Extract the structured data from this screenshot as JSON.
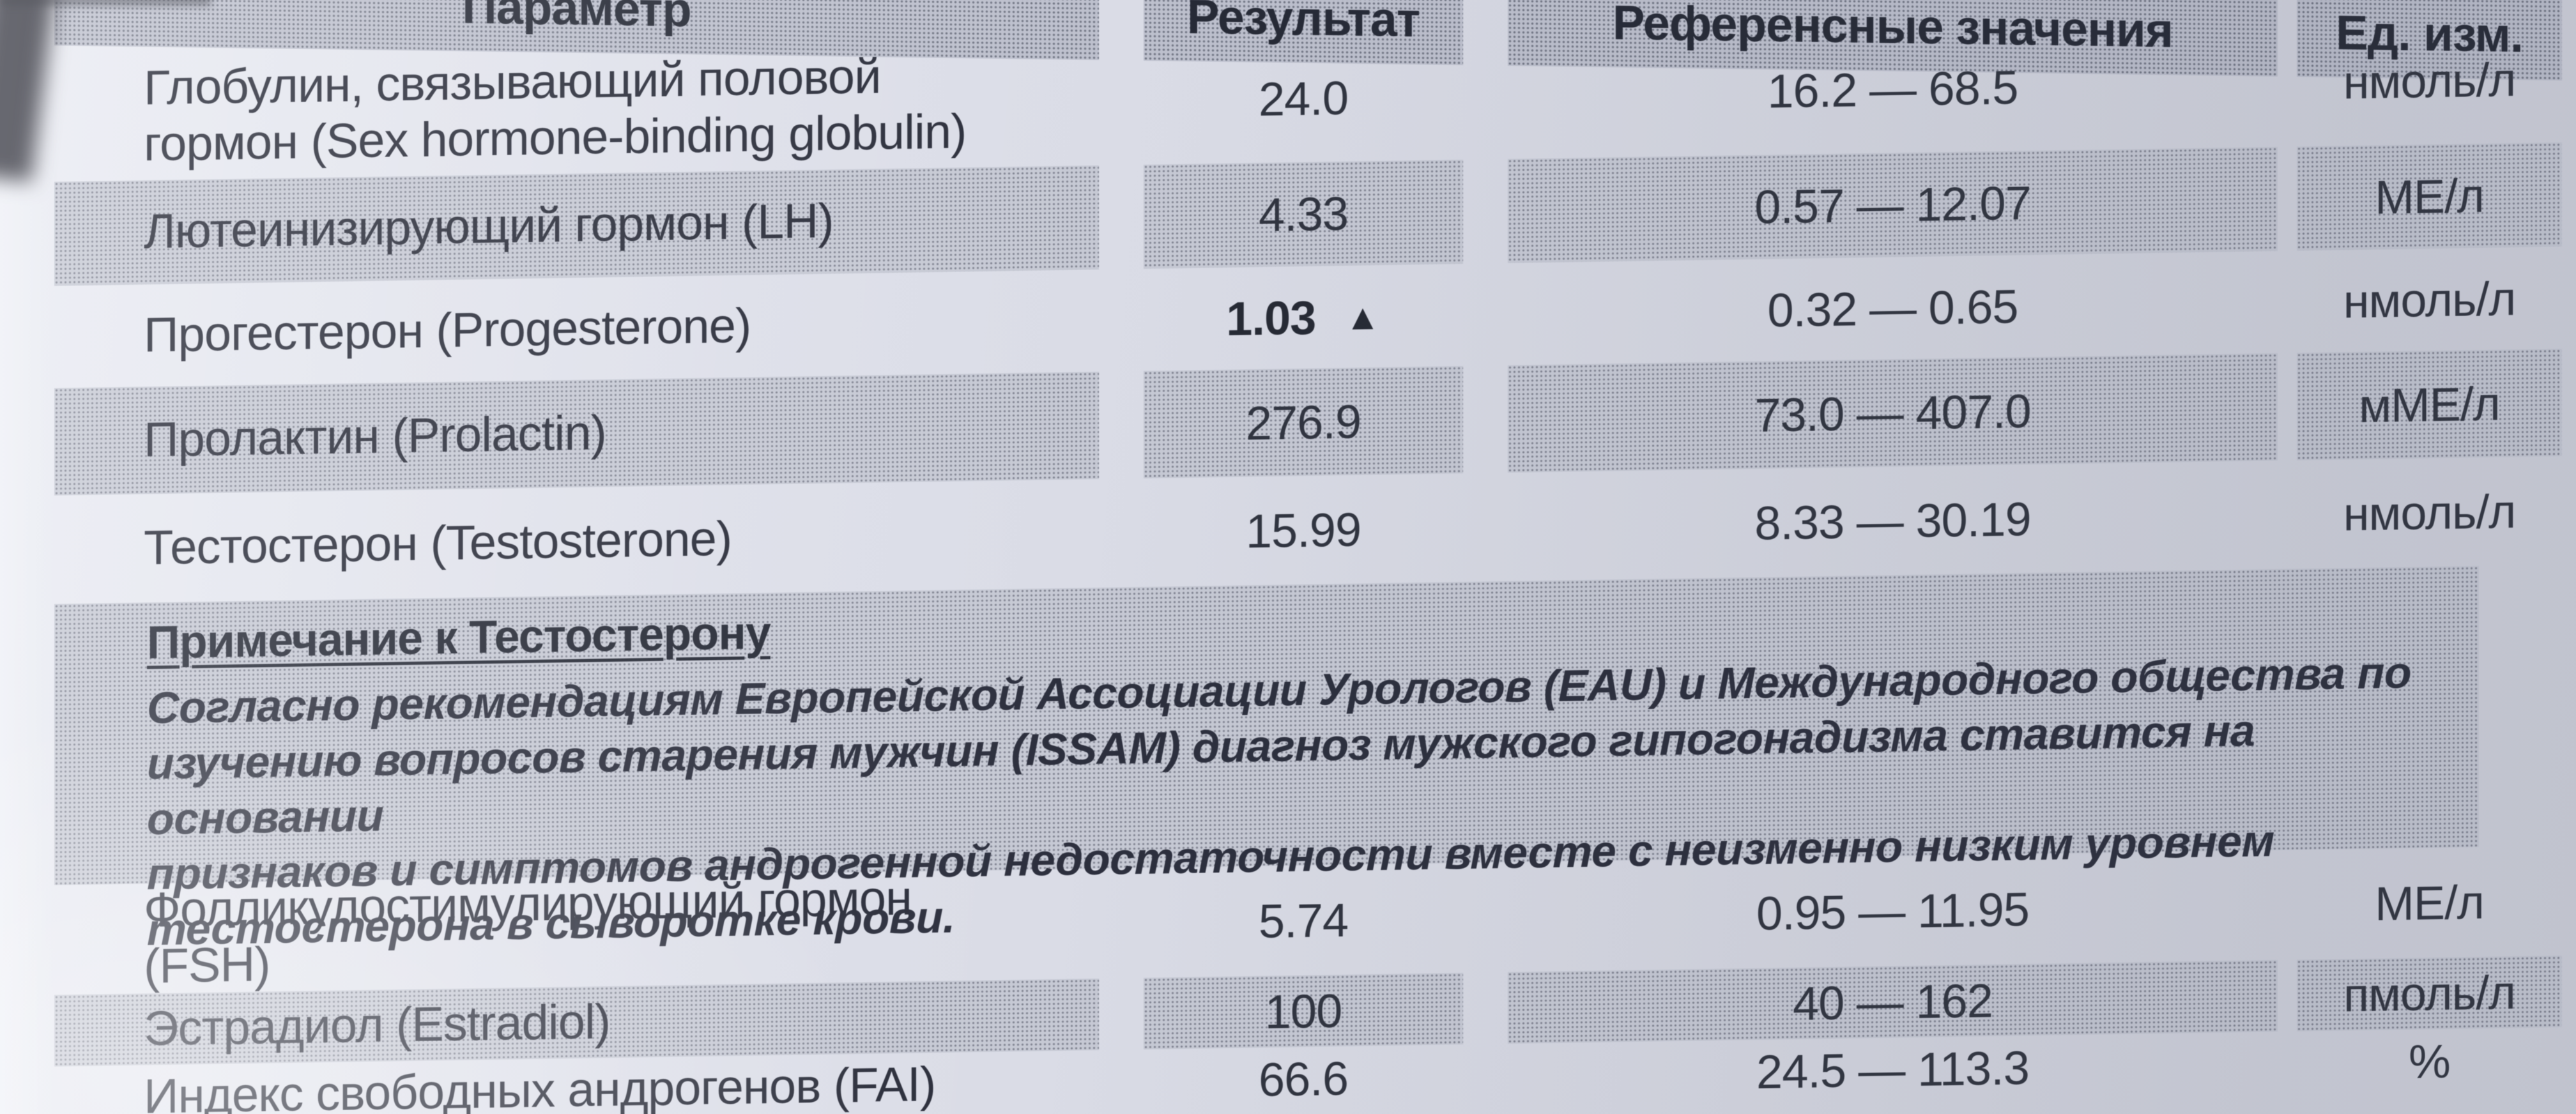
{
  "table": {
    "columns": [
      "Параметр",
      "Результат",
      "Референсные значения",
      "Ед. изм."
    ],
    "rows": [
      {
        "param": "Глобулин, связывающий половой\nгормон (Sex hormone-binding globulin)",
        "result": "24.0",
        "reference": "16.2 — 68.5",
        "unit": "нмоль/л",
        "shaded": false
      },
      {
        "param": "Лютеинизирующий гормон (LH)",
        "result": "4.33",
        "reference": "0.57 — 12.07",
        "unit": "МЕ/л",
        "shaded": true
      },
      {
        "param": "Прогестерон (Progesterone)",
        "result": "1.03",
        "flag": "▲",
        "reference": "0.32 — 0.65",
        "unit": "нмоль/л",
        "shaded": false
      },
      {
        "param": "Пролактин (Prolactin)",
        "result": "276.9",
        "reference": "73.0 — 407.0",
        "unit": "мМЕ/л",
        "shaded": true
      },
      {
        "param": "Тестостерон (Testosterone)",
        "result": "15.99",
        "reference": "8.33 — 30.19",
        "unit": "нмоль/л",
        "shaded": false
      },
      {
        "param": "Фолликулостимулирующий гормон\n(FSH)",
        "result": "5.74",
        "reference": "0.95 — 11.95",
        "unit": "МЕ/л",
        "shaded": false
      },
      {
        "param": "Эстрадиол (Estradiol)",
        "result": "100",
        "reference": "40 — 162",
        "unit": "пмоль/л",
        "shaded": true
      },
      {
        "param": "Индекс свободных андрогенов (FAI)",
        "result": "66.6",
        "reference": "24.5 — 113.3",
        "unit": "%",
        "shaded": false
      }
    ]
  },
  "note": {
    "title": "Примечание к Тестостерону",
    "body": "Согласно рекомендациям Европейской Ассоциации Урологов (EAU) и Международного общества по\nизучению вопросов старения мужчин (ISSAM) диагноз мужского гипогонадизма ставится на основании\nпризнаков и симптомов  андрогенной недостаточности вместе с неизменно низким уровнем\nтестостерона в сыворотке крови."
  }
}
